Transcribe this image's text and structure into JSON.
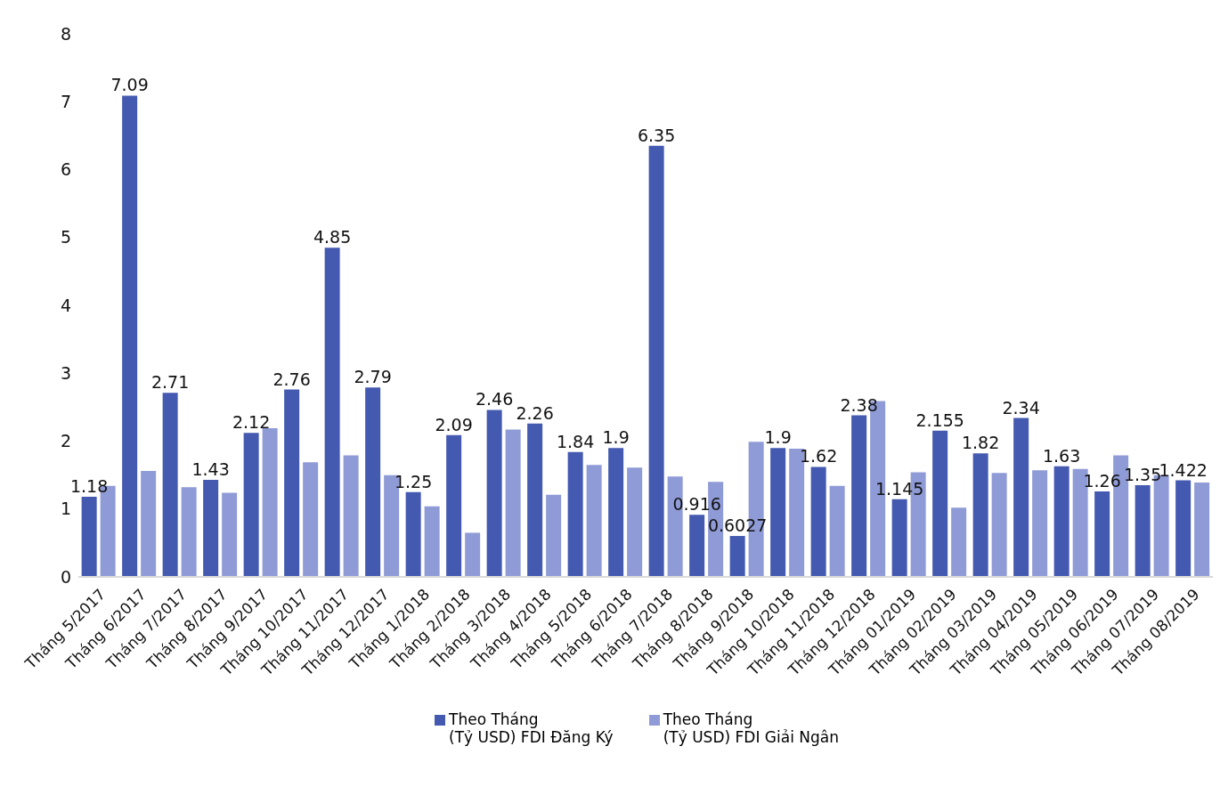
{
  "chart_data": {
    "type": "bar",
    "categories": [
      "Tháng 5/2017",
      "Tháng 6/2017",
      "Tháng 7/2017",
      "Tháng 8/2017",
      "Tháng 9/2017",
      "Tháng 10/2017",
      "Tháng 11/2017",
      "Tháng 12/2017",
      "Tháng 1/2018",
      "Tháng 2/2018",
      "Tháng 3/2018",
      "Tháng 4/2018",
      "Tháng 5/2018",
      "Tháng 6/2018",
      "Tháng 7/2018",
      "Tháng 8/2018",
      "Tháng 9/2018",
      "Tháng 10/2018",
      "Tháng 11/2018",
      "Tháng 12/2018",
      "Tháng 01/2019",
      "Tháng 02/2019",
      "Tháng 03/2019",
      "Tháng 04/2019",
      "Tháng 05/2019",
      "Tháng 06/2019",
      "Tháng 07/2019",
      "Tháng 08/2019"
    ],
    "series": [
      {
        "name": "Theo Tháng (Tỷ USD) FDI Đăng Ký",
        "color": "#4459b0",
        "values": [
          1.18,
          7.09,
          2.71,
          1.43,
          2.12,
          2.76,
          4.85,
          2.79,
          1.25,
          2.09,
          2.46,
          2.26,
          1.84,
          1.9,
          6.35,
          0.916,
          0.6027,
          1.9,
          1.62,
          2.38,
          1.145,
          2.155,
          1.82,
          2.34,
          1.63,
          1.26,
          1.35,
          1.422
        ],
        "value_labels": [
          "1.18",
          "7.09",
          "2.71",
          "1.43",
          "2.12",
          "2.76",
          "4.85",
          "2.79",
          "1.25",
          "2.09",
          "2.46",
          "2.26",
          "1.84",
          "1.9",
          "6.35",
          "0.916",
          "0.6027",
          "1.9",
          "1.62",
          "2.38",
          "1.145",
          "2.155",
          "1.82",
          "2.34",
          "1.63",
          "1.26",
          "1.35",
          "1.422"
        ]
      },
      {
        "name": "Theo Tháng (Tỷ USD) FDI Giải Ngân",
        "color": "#8f9bd6",
        "values": [
          1.34,
          1.56,
          1.32,
          1.24,
          2.19,
          1.69,
          1.79,
          1.5,
          1.04,
          0.65,
          2.17,
          1.21,
          1.65,
          1.61,
          1.48,
          1.4,
          1.99,
          1.89,
          1.34,
          2.59,
          1.54,
          1.02,
          1.53,
          1.57,
          1.59,
          1.79,
          1.5,
          1.39
        ]
      }
    ],
    "ylim": [
      0,
      8
    ],
    "yticks": [
      0,
      1,
      2,
      3,
      4,
      5,
      6,
      7,
      8
    ],
    "grid": false,
    "legend": "bottom"
  }
}
